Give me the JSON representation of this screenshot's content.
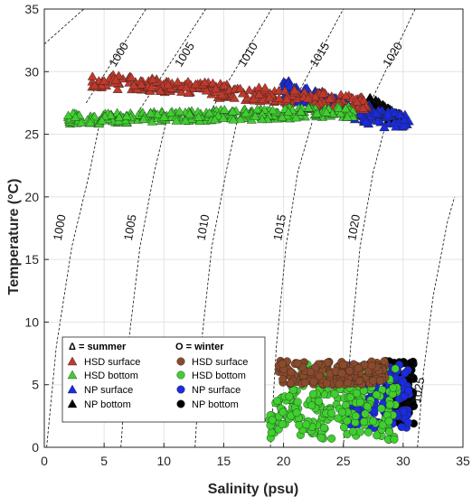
{
  "chart_data": {
    "type": "scatter",
    "xlabel": "Salinity (psu)",
    "ylabel": "Temperature (°C)",
    "xlim": [
      0,
      35
    ],
    "ylim": [
      0,
      35
    ],
    "x_ticks": [
      "0",
      "5",
      "10",
      "15",
      "20",
      "25",
      "30",
      "35"
    ],
    "y_ticks": [
      "0",
      "5",
      "10",
      "15",
      "20",
      "25",
      "30",
      "35"
    ],
    "grid": true,
    "legend_position": "bottom-right",
    "legend": {
      "summer_header": "Δ = summer",
      "winter_header": "O = winter",
      "entries": [
        "HSD surface",
        "HSD bottom",
        "NP surface",
        "NP bottom"
      ]
    },
    "isopycnals": {
      "labels_top": [
        "1000",
        "1005",
        "1010",
        "1015",
        "1020"
      ],
      "labels_mid": [
        "1000",
        "1005",
        "1010",
        "1015",
        "1020"
      ],
      "labels_low": [
        "1025"
      ]
    },
    "colors": {
      "hsd_surface": "#c0392b",
      "hsd_bottom": "#3fcf2f",
      "np_surface": "#1a2be0",
      "np_bottom": "#000000"
    },
    "series": [
      {
        "name": "HSD surface",
        "season": "summer",
        "marker": "triangle",
        "color": "#c0392b",
        "salinity_range": [
          4,
          27
        ],
        "temperature_range": [
          26.8,
          29.6
        ]
      },
      {
        "name": "HSD bottom",
        "season": "summer",
        "marker": "triangle",
        "color": "#3fcf2f",
        "salinity_range": [
          2,
          26
        ],
        "temperature_range": [
          25.9,
          27.2
        ]
      },
      {
        "name": "NP surface",
        "season": "summer",
        "marker": "triangle",
        "color": "#1a2be0",
        "salinity_range": [
          20,
          30.5
        ],
        "temperature_range": [
          25.4,
          29.0
        ]
      },
      {
        "name": "NP bottom",
        "season": "summer",
        "marker": "triangle",
        "color": "#000000",
        "salinity_range": [
          27,
          30
        ],
        "temperature_range": [
          25.5,
          28.0
        ]
      },
      {
        "name": "HSD surface",
        "season": "winter",
        "marker": "circle",
        "color": "#8b4a2b",
        "salinity_range": [
          19.5,
          28.5
        ],
        "temperature_range": [
          5.0,
          6.9
        ]
      },
      {
        "name": "HSD bottom",
        "season": "winter",
        "marker": "circle",
        "color": "#3fcf2f",
        "salinity_range": [
          18.8,
          29.5
        ],
        "temperature_range": [
          0.6,
          6.7
        ]
      },
      {
        "name": "NP surface",
        "season": "winter",
        "marker": "circle",
        "color": "#1a2be0",
        "salinity_range": [
          25.5,
          30.5
        ],
        "temperature_range": [
          1.5,
          6.7
        ]
      },
      {
        "name": "NP bottom",
        "season": "winter",
        "marker": "circle",
        "color": "#000000",
        "salinity_range": [
          28.5,
          30.9
        ],
        "temperature_range": [
          1.8,
          7.0
        ]
      }
    ]
  }
}
